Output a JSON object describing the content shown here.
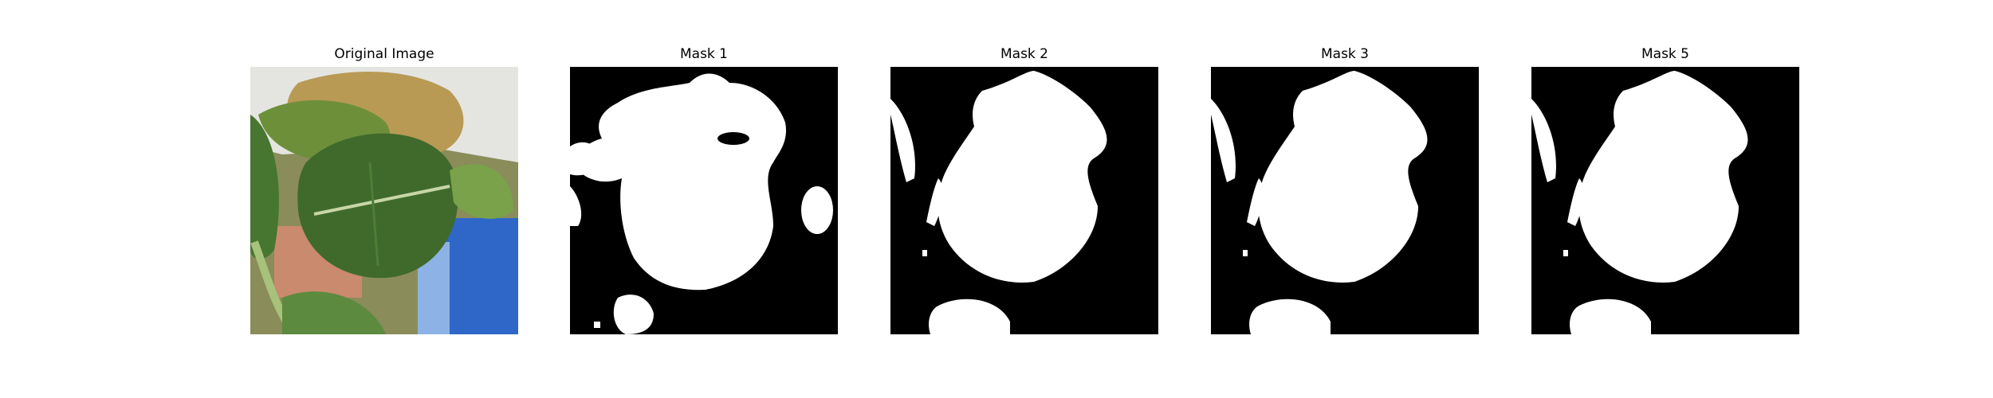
{
  "panels": [
    {
      "title": "Original Image"
    },
    {
      "title": "Mask 1"
    },
    {
      "title": "Mask 2"
    },
    {
      "title": "Mask 3"
    },
    {
      "title": "Mask 5"
    }
  ],
  "colors": {
    "mask_fg": "#ffffff",
    "mask_bg": "#000000",
    "leaf_dark": "#3f6a2b",
    "leaf_light": "#7aa24a",
    "ceiling": "#e6e6e2",
    "blue": "#2f67c8"
  }
}
